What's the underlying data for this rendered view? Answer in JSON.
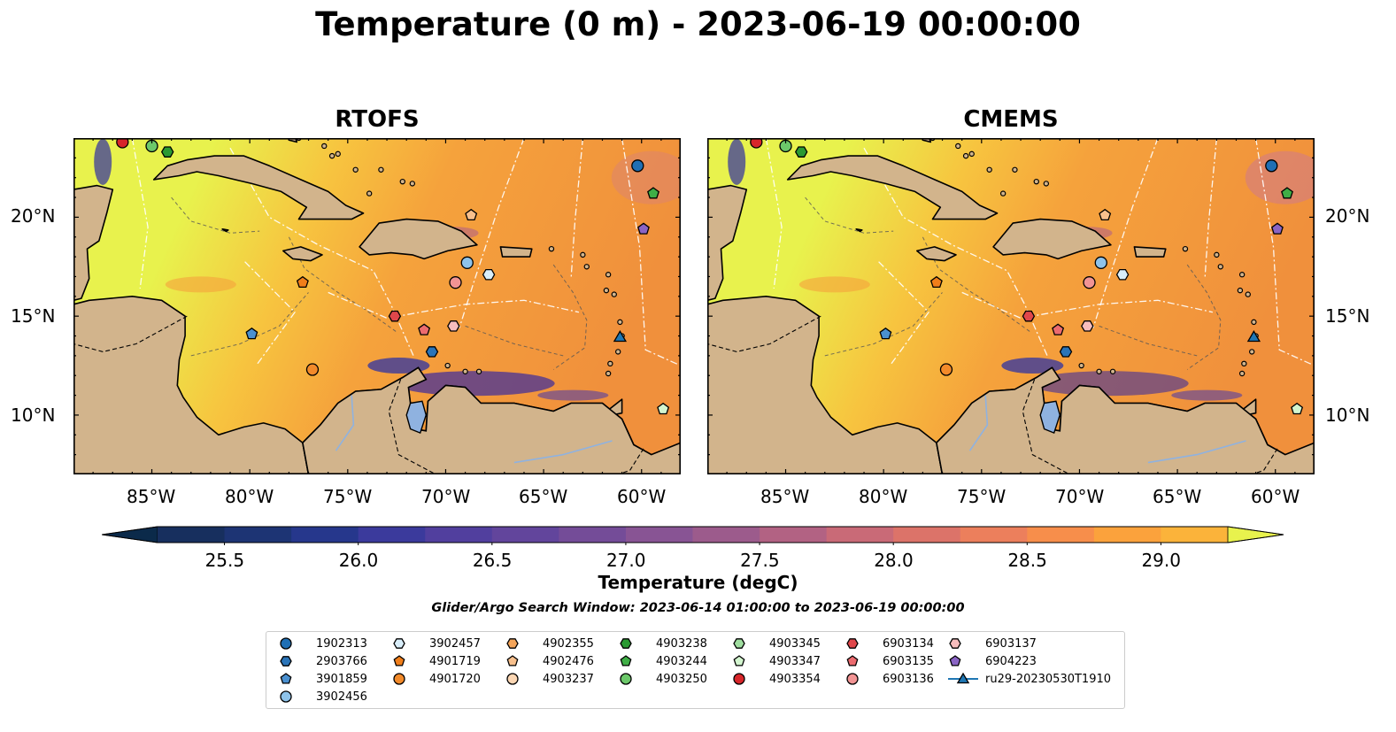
{
  "figure": {
    "title": "Temperature (0 m) - 2023-06-19 00:00:00",
    "search_window": "Glider/Argo Search Window: 2023-06-14 01:00:00 to 2023-06-19 00:00:00"
  },
  "map": {
    "extent": {
      "lon": [
        -89,
        -58
      ],
      "lat": [
        7,
        24
      ]
    },
    "lon_ticks": [
      "85°W",
      "80°W",
      "75°W",
      "70°W",
      "65°W",
      "60°W"
    ],
    "lat_ticks": [
      "10°N",
      "15°N",
      "20°N"
    ],
    "panels": [
      {
        "title": "RTOFS"
      },
      {
        "title": "CMEMS"
      }
    ],
    "colors": {
      "land": "#d2b48c",
      "warm": "#e8f24d",
      "mid": "#f5a23c",
      "cool": "#5a3d8c",
      "lake": "#8fb2e0"
    }
  },
  "colorbar": {
    "label": "Temperature (degC)",
    "ticks": [
      "25.5",
      "26.0",
      "26.5",
      "27.0",
      "27.5",
      "28.0",
      "28.5",
      "29.0"
    ],
    "levels": [
      25.25,
      25.5,
      25.75,
      26.0,
      26.25,
      26.5,
      26.75,
      27.0,
      27.25,
      27.5,
      27.75,
      28.0,
      28.25,
      28.5,
      28.75,
      29.0,
      29.25
    ],
    "colors": [
      "#0b2a4a",
      "#172f5e",
      "#1d3474",
      "#26378c",
      "#3b3a9c",
      "#513f9e",
      "#62459c",
      "#744c98",
      "#885494",
      "#9c5b8c",
      "#b26283",
      "#c96a77",
      "#dc7369",
      "#ec7f5c",
      "#f78e4b",
      "#fba23c",
      "#fbb33a",
      "#f6d341",
      "#e8f24d"
    ]
  },
  "legend": {
    "items": [
      {
        "label": "1902313",
        "shape": "circle",
        "color": "#1f6fb4"
      },
      {
        "label": "2903766",
        "shape": "hexagon",
        "color": "#2a74b8"
      },
      {
        "label": "3901859",
        "shape": "pentagon",
        "color": "#4a90d0"
      },
      {
        "label": "3902456",
        "shape": "circle",
        "color": "#8ec3ea"
      },
      {
        "label": "3902457",
        "shape": "hexagon",
        "color": "#d9eefa"
      },
      {
        "label": "4901719",
        "shape": "pentagon",
        "color": "#f07e1a"
      },
      {
        "label": "4901720",
        "shape": "circle",
        "color": "#f28a2a"
      },
      {
        "label": "4902355",
        "shape": "hexagon",
        "color": "#f5a55a"
      },
      {
        "label": "4902476",
        "shape": "pentagon",
        "color": "#f8c08d"
      },
      {
        "label": "4903237",
        "shape": "circle",
        "color": "#fbd6b3"
      },
      {
        "label": "4903238",
        "shape": "hexagon",
        "color": "#2a9a32"
      },
      {
        "label": "4903244",
        "shape": "pentagon",
        "color": "#3fae46"
      },
      {
        "label": "4903250",
        "shape": "circle",
        "color": "#6cc86a"
      },
      {
        "label": "4903345",
        "shape": "hexagon",
        "color": "#a0dea0"
      },
      {
        "label": "4903347",
        "shape": "pentagon",
        "color": "#d3f5cf"
      },
      {
        "label": "4903354",
        "shape": "circle",
        "color": "#d8262a"
      },
      {
        "label": "6903134",
        "shape": "hexagon",
        "color": "#e0474b"
      },
      {
        "label": "6903135",
        "shape": "pentagon",
        "color": "#ec6b6f"
      },
      {
        "label": "6903136",
        "shape": "circle",
        "color": "#f29494"
      },
      {
        "label": "6903137",
        "shape": "hexagon",
        "color": "#f7bdbd"
      },
      {
        "label": "6904223",
        "shape": "pentagon",
        "color": "#8a64c4"
      },
      {
        "label": "ru29-20230530T1910",
        "shape": "triangle",
        "color": "#1f77b4"
      }
    ]
  },
  "markers": [
    {
      "id": "4903354",
      "lon": -86.5,
      "lat": 23.8
    },
    {
      "id": "4903250",
      "lon": -85.0,
      "lat": 23.6
    },
    {
      "id": "4903238",
      "lon": -84.2,
      "lat": 23.3
    },
    {
      "id": "1902313",
      "lon": -60.2,
      "lat": 22.6
    },
    {
      "id": "4903244",
      "lon": -59.4,
      "lat": 21.2
    },
    {
      "id": "4902476",
      "lon": -68.7,
      "lat": 20.1
    },
    {
      "id": "6904223",
      "lon": -59.9,
      "lat": 19.4
    },
    {
      "id": "3902456",
      "lon": -68.9,
      "lat": 17.7
    },
    {
      "id": "3902457",
      "lon": -67.8,
      "lat": 17.1
    },
    {
      "id": "4901719",
      "lon": -77.3,
      "lat": 16.7
    },
    {
      "id": "6903136",
      "lon": -69.5,
      "lat": 16.7
    },
    {
      "id": "6903134",
      "lon": -72.6,
      "lat": 15.0
    },
    {
      "id": "6903137",
      "lon": -69.6,
      "lat": 14.5
    },
    {
      "id": "6903135",
      "lon": -71.1,
      "lat": 14.3
    },
    {
      "id": "3901859",
      "lon": -79.9,
      "lat": 14.1
    },
    {
      "id": "ru29-20230530T1910",
      "lon": -61.1,
      "lat": 13.9
    },
    {
      "id": "2903766",
      "lon": -70.7,
      "lat": 13.2
    },
    {
      "id": "4901720",
      "lon": -76.8,
      "lat": 12.3
    },
    {
      "id": "4903347",
      "lon": -58.9,
      "lat": 10.3
    }
  ]
}
